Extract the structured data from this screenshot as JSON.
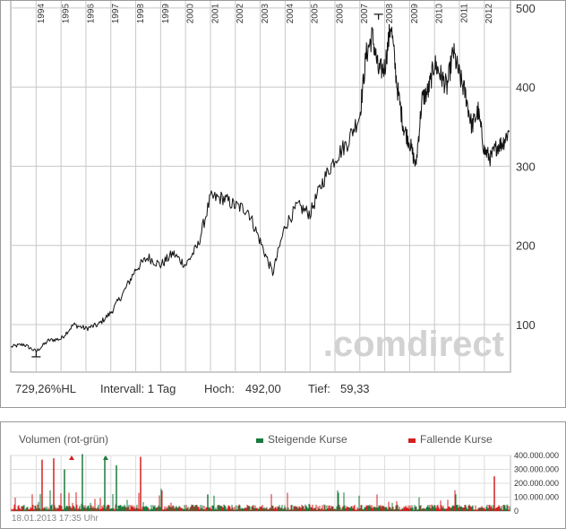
{
  "chart_data": [
    {
      "type": "line",
      "title": "",
      "xlabel": "",
      "ylabel": "",
      "x_ticks": [
        "1994",
        "1995",
        "1996",
        "1997",
        "1998",
        "1999",
        "2000",
        "2001",
        "2002",
        "2003",
        "2004",
        "2005",
        "2006",
        "2007",
        "2008",
        "2009",
        "2010",
        "2011",
        "2012"
      ],
      "y_ticks": [
        100,
        200,
        300,
        400,
        500
      ],
      "ylim": [
        40,
        510
      ],
      "grid": true,
      "x": [
        1993.0,
        1993.5,
        1994.0,
        1994.5,
        1995.0,
        1995.5,
        1996.0,
        1996.5,
        1997.0,
        1997.5,
        1998.0,
        1998.5,
        1999.0,
        1999.5,
        2000.0,
        2000.5,
        2001.0,
        2001.5,
        2002.0,
        2002.5,
        2003.0,
        2003.5,
        2004.0,
        2004.5,
        2005.0,
        2005.5,
        2006.0,
        2006.5,
        2007.0,
        2007.25,
        2007.5,
        2007.75,
        2008.0,
        2008.25,
        2008.5,
        2008.75,
        2009.0,
        2009.25,
        2009.5,
        2009.75,
        2010.0,
        2010.25,
        2010.5,
        2010.75,
        2011.0,
        2011.25,
        2011.5,
        2011.75,
        2012.0,
        2012.25,
        2012.5,
        2012.75,
        2013.0
      ],
      "y": [
        72,
        75,
        66,
        80,
        82,
        100,
        95,
        100,
        115,
        140,
        170,
        185,
        175,
        190,
        175,
        200,
        260,
        260,
        250,
        245,
        205,
        165,
        225,
        250,
        240,
        280,
        310,
        330,
        365,
        440,
        465,
        420,
        425,
        480,
        400,
        350,
        330,
        300,
        385,
        395,
        430,
        415,
        400,
        445,
        415,
        390,
        350,
        370,
        320,
        310,
        325,
        330,
        345
      ],
      "annotations": {
        "high_label": "Hoch",
        "high": "492,00",
        "low_label": "Tief",
        "low": "59,33"
      },
      "watermark": ".comdirect"
    },
    {
      "type": "bar",
      "title": "Volumen (rot-grün)",
      "legend_position": "top-right",
      "series": [
        {
          "name": "Steigende Kurse",
          "color": "#1a7a3c"
        },
        {
          "name": "Fallende Kurse",
          "color": "#d42020"
        }
      ],
      "y_ticks": [
        "0",
        "100.000.000",
        "200.000.000",
        "300.000.000",
        "400.000.000"
      ],
      "ylim": [
        0,
        400000000
      ]
    }
  ],
  "info": {
    "performance": "729,26%HL",
    "interval": "Intervall: 1 Tag",
    "high_label": "Hoch:",
    "high_value": "492,00",
    "low_label": "Tief:",
    "low_value": "59,33"
  },
  "volume": {
    "title": "Volumen (rot-grün)",
    "legend_up": "Steigende Kurse",
    "legend_down": "Fallende Kurse"
  },
  "timestamp": "18.01.2013 17:35 Uhr",
  "colors": {
    "up": "#1a7a3c",
    "down": "#d42020",
    "grid": "#cccccc",
    "border": "#999999"
  }
}
